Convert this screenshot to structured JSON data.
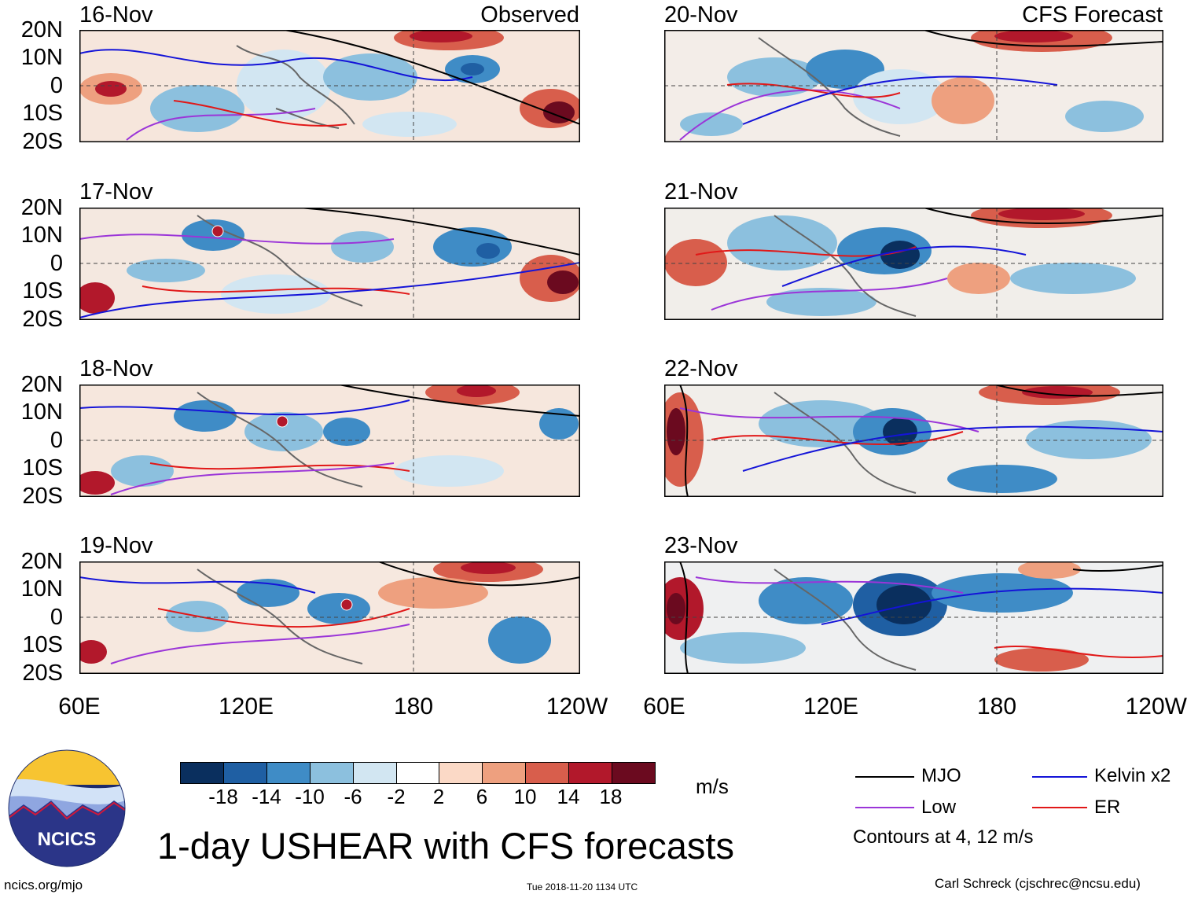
{
  "header": {
    "left_label": "Observed",
    "right_label": "CFS Forecast"
  },
  "observed_panels": [
    {
      "date": "16-Nov"
    },
    {
      "date": "17-Nov"
    },
    {
      "date": "18-Nov"
    },
    {
      "date": "19-Nov"
    }
  ],
  "forecast_panels": [
    {
      "date": "20-Nov"
    },
    {
      "date": "21-Nov"
    },
    {
      "date": "22-Nov"
    },
    {
      "date": "23-Nov"
    }
  ],
  "axes": {
    "latitudes": [
      "20N",
      "10N",
      "0",
      "10S",
      "20S"
    ],
    "longitudes": [
      "60E",
      "120E",
      "180",
      "120W"
    ]
  },
  "colorbar": {
    "levels": [
      "-18",
      "-14",
      "-10",
      "-6",
      "-2",
      "2",
      "6",
      "10",
      "14",
      "18"
    ],
    "colors": [
      "#0a2f5e",
      "#1f5fa3",
      "#3f8cc6",
      "#8cc0de",
      "#d2e6f2",
      "#ffffff",
      "#fbd9c6",
      "#eea07f",
      "#d85e4c",
      "#b2182b",
      "#6b0a1f"
    ],
    "units": "m/s"
  },
  "legend": {
    "items": [
      {
        "label": "MJO",
        "color": "#000000"
      },
      {
        "label": "Kelvin x2",
        "color": "#1414d8"
      },
      {
        "label": "Low",
        "color": "#9b35d8"
      },
      {
        "label": "ER",
        "color": "#e11818"
      }
    ],
    "note": "Contours at 4, 12 m/s"
  },
  "title": "1-day USHEAR with CFS forecasts",
  "footer": {
    "logo_text": "NCICS",
    "website": "ncics.org/mjo",
    "timestamp": "Tue 2018-11-20 1134 UTC",
    "credit": "Carl Schreck (cjschrec@ncsu.edu)"
  }
}
